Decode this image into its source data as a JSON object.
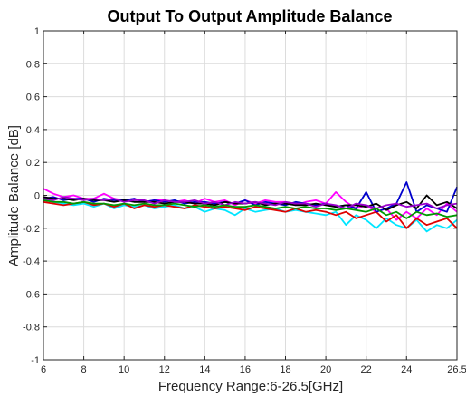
{
  "chart_data": {
    "type": "line",
    "title": "Output To Output Amplitude Balance",
    "xlabel": "Frequency Range:6-26.5[GHz]",
    "ylabel": "Amplitude Balance [dB]",
    "xlim": [
      6,
      26.5
    ],
    "ylim": [
      -1,
      1
    ],
    "xticks": [
      6,
      8,
      10,
      12,
      14,
      16,
      18,
      20,
      22,
      24,
      26.5
    ],
    "xtick_labels": [
      "6",
      "8",
      "10",
      "12",
      "14",
      "16",
      "18",
      "20",
      "22",
      "24",
      "26.5"
    ],
    "yticks": [
      -1,
      -0.8,
      -0.6,
      -0.4,
      -0.2,
      0,
      0.2,
      0.4,
      0.6,
      0.8,
      1
    ],
    "ytick_labels": [
      "-1",
      "-0.8",
      "-0.6",
      "-0.4",
      "-0.2",
      "0",
      "0.2",
      "0.4",
      "0.6",
      "0.8",
      "1"
    ],
    "grid": true,
    "legend": "none",
    "x": [
      6,
      6.5,
      7,
      7.5,
      8,
      8.5,
      9,
      9.5,
      10,
      10.5,
      11,
      11.5,
      12,
      12.5,
      13,
      13.5,
      14,
      14.5,
      15,
      15.5,
      16,
      16.5,
      17,
      17.5,
      18,
      18.5,
      19,
      19.5,
      20,
      20.5,
      21,
      21.5,
      22,
      22.5,
      23,
      23.5,
      24,
      24.5,
      25,
      25.5,
      26,
      26.5
    ],
    "series": [
      {
        "color": "#ff00ff",
        "values": [
          0.04,
          0.01,
          -0.01,
          0.0,
          -0.02,
          -0.02,
          0.01,
          -0.02,
          -0.03,
          -0.02,
          -0.04,
          -0.03,
          -0.03,
          -0.04,
          -0.03,
          -0.05,
          -0.02,
          -0.04,
          -0.03,
          -0.06,
          -0.03,
          -0.05,
          -0.03,
          -0.04,
          -0.04,
          -0.06,
          -0.04,
          -0.03,
          -0.05,
          0.02,
          -0.04,
          -0.08,
          -0.06,
          -0.1,
          -0.08,
          -0.15,
          -0.1,
          -0.14,
          -0.08,
          -0.12,
          -0.05,
          -0.1
        ]
      },
      {
        "color": "#00e5ff",
        "values": [
          -0.03,
          -0.04,
          -0.05,
          -0.06,
          -0.05,
          -0.07,
          -0.05,
          -0.08,
          -0.06,
          -0.07,
          -0.06,
          -0.08,
          -0.07,
          -0.06,
          -0.08,
          -0.07,
          -0.1,
          -0.08,
          -0.09,
          -0.12,
          -0.08,
          -0.1,
          -0.09,
          -0.08,
          -0.1,
          -0.09,
          -0.1,
          -0.11,
          -0.12,
          -0.1,
          -0.18,
          -0.12,
          -0.15,
          -0.2,
          -0.14,
          -0.18,
          -0.2,
          -0.15,
          -0.22,
          -0.18,
          -0.2,
          -0.15
        ]
      },
      {
        "color": "#e00000",
        "values": [
          -0.04,
          -0.05,
          -0.06,
          -0.05,
          -0.04,
          -0.06,
          -0.05,
          -0.07,
          -0.05,
          -0.08,
          -0.06,
          -0.07,
          -0.06,
          -0.07,
          -0.08,
          -0.06,
          -0.07,
          -0.08,
          -0.07,
          -0.08,
          -0.09,
          -0.07,
          -0.08,
          -0.09,
          -0.1,
          -0.08,
          -0.1,
          -0.09,
          -0.1,
          -0.12,
          -0.1,
          -0.14,
          -0.12,
          -0.1,
          -0.16,
          -0.12,
          -0.2,
          -0.14,
          -0.18,
          -0.16,
          -0.14,
          -0.2
        ]
      },
      {
        "color": "#0000cc",
        "values": [
          -0.02,
          -0.01,
          -0.03,
          -0.02,
          -0.02,
          -0.04,
          -0.02,
          -0.03,
          -0.03,
          -0.02,
          -0.04,
          -0.03,
          -0.04,
          -0.03,
          -0.05,
          -0.04,
          -0.04,
          -0.05,
          -0.04,
          -0.05,
          -0.03,
          -0.06,
          -0.04,
          -0.05,
          -0.06,
          -0.04,
          -0.05,
          -0.06,
          -0.05,
          -0.07,
          -0.06,
          -0.08,
          0.02,
          -0.1,
          -0.08,
          -0.05,
          0.08,
          -0.1,
          -0.06,
          -0.08,
          -0.1,
          0.05
        ]
      },
      {
        "color": "#000000",
        "values": [
          -0.01,
          -0.02,
          -0.02,
          -0.03,
          -0.02,
          -0.03,
          -0.03,
          -0.04,
          -0.03,
          -0.04,
          -0.04,
          -0.04,
          -0.05,
          -0.04,
          -0.04,
          -0.05,
          -0.05,
          -0.06,
          -0.04,
          -0.05,
          -0.05,
          -0.04,
          -0.06,
          -0.05,
          -0.05,
          -0.06,
          -0.06,
          -0.05,
          -0.06,
          -0.07,
          -0.06,
          -0.06,
          -0.07,
          -0.05,
          -0.09,
          -0.06,
          -0.04,
          -0.08,
          0.0,
          -0.06,
          -0.04,
          -0.08
        ]
      },
      {
        "color": "#9900cc",
        "values": [
          -0.02,
          -0.03,
          -0.01,
          -0.02,
          -0.03,
          -0.02,
          -0.03,
          -0.02,
          -0.04,
          -0.03,
          -0.03,
          -0.05,
          -0.03,
          -0.04,
          -0.04,
          -0.03,
          -0.05,
          -0.04,
          -0.06,
          -0.04,
          -0.05,
          -0.04,
          -0.05,
          -0.06,
          -0.04,
          -0.05,
          -0.05,
          -0.07,
          -0.05,
          -0.06,
          -0.08,
          -0.05,
          -0.06,
          -0.08,
          -0.06,
          -0.05,
          -0.07,
          -0.06,
          -0.05,
          -0.08,
          -0.06,
          -0.05
        ]
      },
      {
        "color": "#009900",
        "values": [
          -0.03,
          -0.04,
          -0.04,
          -0.05,
          -0.04,
          -0.05,
          -0.05,
          -0.06,
          -0.05,
          -0.06,
          -0.05,
          -0.06,
          -0.06,
          -0.05,
          -0.06,
          -0.07,
          -0.06,
          -0.07,
          -0.06,
          -0.07,
          -0.07,
          -0.06,
          -0.07,
          -0.08,
          -0.07,
          -0.08,
          -0.07,
          -0.08,
          -0.08,
          -0.09,
          -0.08,
          -0.09,
          -0.1,
          -0.08,
          -0.12,
          -0.1,
          -0.14,
          -0.1,
          -0.12,
          -0.11,
          -0.13,
          -0.12
        ]
      }
    ]
  }
}
